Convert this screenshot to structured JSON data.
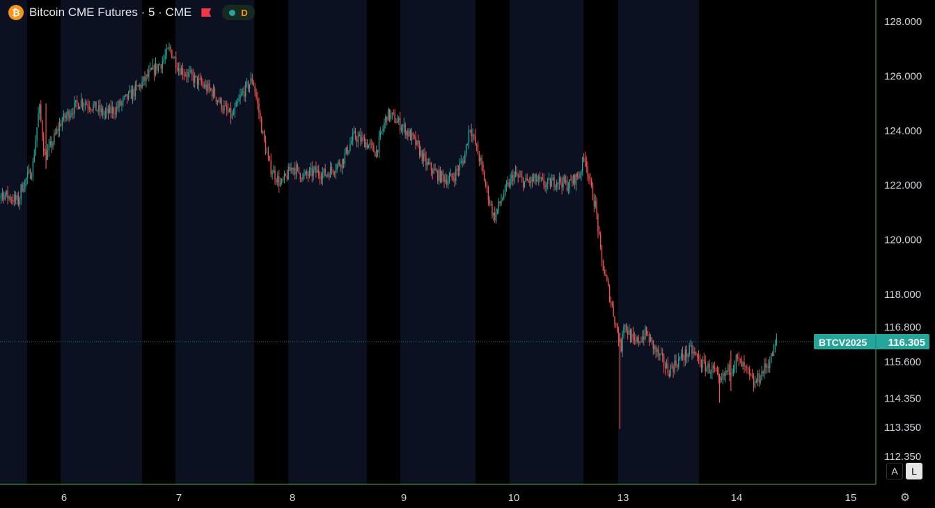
{
  "header": {
    "coin_glyph": "₿",
    "title": "Bitcoin CME Futures · 5 · CME",
    "delay_label": "D"
  },
  "controls": {
    "auto_label": "A",
    "log_label": "L",
    "settings_icon": "gear-icon"
  },
  "colors": {
    "up": "#26a69a",
    "down": "#ef5350",
    "session_shade": "#0b1120",
    "axis_line": "#4caf50",
    "badge": "#26a69a"
  },
  "chart_data": {
    "type": "candlestick",
    "price_ticks": [
      "128.000",
      "126.000",
      "124.000",
      "122.000",
      "120.000",
      "118.000",
      "116.800",
      "115.600",
      "114.350",
      "113.350",
      "112.350"
    ],
    "date_ticks": [
      "6",
      "7",
      "8",
      "9",
      "10",
      "13",
      "14",
      "15"
    ],
    "last_price": {
      "symbol": "BTCV2025",
      "value": "116.305"
    },
    "path": [
      [
        5.3,
        121.2
      ],
      [
        5.45,
        121.7
      ],
      [
        5.6,
        121.4
      ],
      [
        5.62,
        121.9
      ],
      [
        5.72,
        122.6
      ],
      [
        5.78,
        124.9
      ],
      [
        5.83,
        123.0
      ],
      [
        5.9,
        123.6
      ],
      [
        5.97,
        124.3
      ],
      [
        6.05,
        124.7
      ],
      [
        6.15,
        125.1
      ],
      [
        6.25,
        124.9
      ],
      [
        6.35,
        124.6
      ],
      [
        6.45,
        124.8
      ],
      [
        6.55,
        125.2
      ],
      [
        6.65,
        125.6
      ],
      [
        6.75,
        126.1
      ],
      [
        6.85,
        126.5
      ],
      [
        6.92,
        127.0
      ],
      [
        7.0,
        126.3
      ],
      [
        7.1,
        126.0
      ],
      [
        7.2,
        125.7
      ],
      [
        7.3,
        125.4
      ],
      [
        7.4,
        124.8
      ],
      [
        7.47,
        124.5
      ],
      [
        7.55,
        125.3
      ],
      [
        7.65,
        125.9
      ],
      [
        7.7,
        124.8
      ],
      [
        7.75,
        123.6
      ],
      [
        7.8,
        122.7
      ],
      [
        7.9,
        122.0
      ],
      [
        8.0,
        122.7
      ],
      [
        8.1,
        122.3
      ],
      [
        8.2,
        122.5
      ],
      [
        8.3,
        122.4
      ],
      [
        8.45,
        122.9
      ],
      [
        8.55,
        123.8
      ],
      [
        8.65,
        123.6
      ],
      [
        8.75,
        123.2
      ],
      [
        8.85,
        124.6
      ],
      [
        8.9,
        124.5
      ],
      [
        9.0,
        124.1
      ],
      [
        9.1,
        123.6
      ],
      [
        9.2,
        122.8
      ],
      [
        9.3,
        122.4
      ],
      [
        9.4,
        122.2
      ],
      [
        9.45,
        122.3
      ],
      [
        9.55,
        123.0
      ],
      [
        9.6,
        124.2
      ],
      [
        9.65,
        123.5
      ],
      [
        9.7,
        122.8
      ],
      [
        9.75,
        121.9
      ],
      [
        9.82,
        120.8
      ],
      [
        9.9,
        121.6
      ],
      [
        10.0,
        122.4
      ],
      [
        10.1,
        122.1
      ],
      [
        10.2,
        122.2
      ],
      [
        10.3,
        122.0
      ],
      [
        10.4,
        122.2
      ],
      [
        10.5,
        122.0
      ],
      [
        10.6,
        122.4
      ],
      [
        10.65,
        123.1
      ],
      [
        10.7,
        122.0
      ],
      [
        10.75,
        121.2
      ],
      [
        10.8,
        119.3
      ],
      [
        10.88,
        117.9
      ],
      [
        10.95,
        116.6
      ],
      [
        10.98,
        116.0
      ],
      [
        11.0,
        117.0
      ],
      [
        11.1,
        116.2
      ],
      [
        11.2,
        116.6
      ],
      [
        11.3,
        115.9
      ],
      [
        11.4,
        115.3
      ],
      [
        11.5,
        115.7
      ],
      [
        11.6,
        116.0
      ],
      [
        11.7,
        115.5
      ],
      [
        11.8,
        115.3
      ],
      [
        11.85,
        114.8
      ],
      [
        11.9,
        115.2
      ],
      [
        11.95,
        115.4
      ],
      [
        12.0,
        115.7
      ],
      [
        12.1,
        115.2
      ],
      [
        12.15,
        114.8
      ],
      [
        12.2,
        115.1
      ],
      [
        12.3,
        115.7
      ],
      [
        12.35,
        116.3
      ]
    ],
    "spikes": [
      [
        5.84,
        125.0,
        122.6
      ],
      [
        10.97,
        116.6,
        113.3
      ],
      [
        11.85,
        115.2,
        114.2
      ],
      [
        11.95,
        116.0,
        114.6
      ]
    ]
  }
}
